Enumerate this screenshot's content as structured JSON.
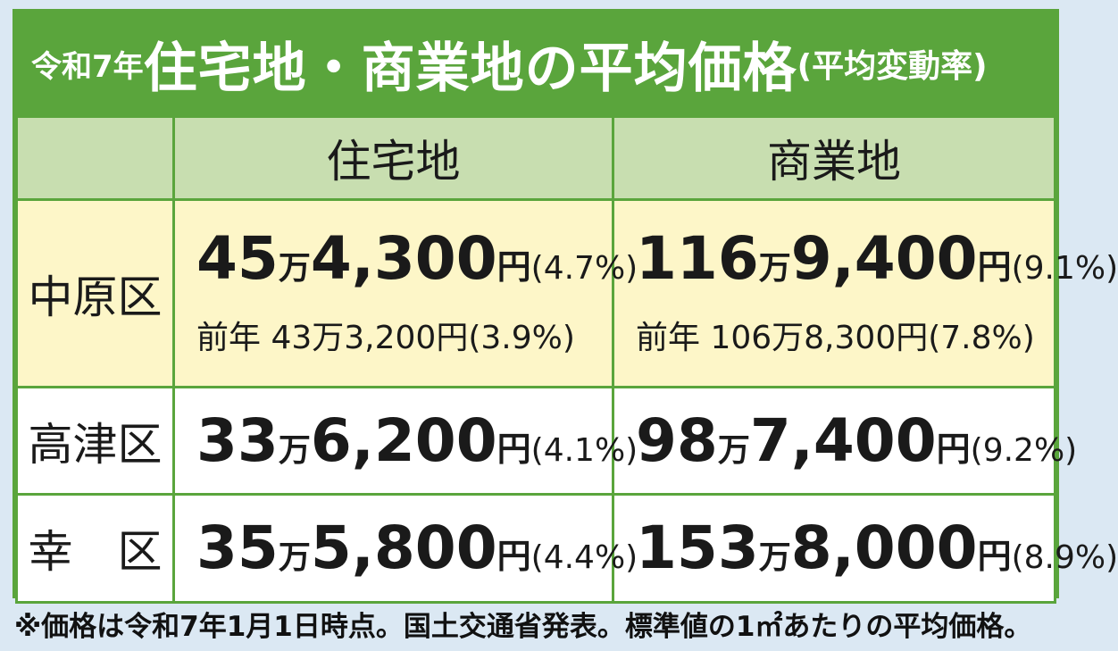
{
  "title": {
    "prefix": "令和7年",
    "main": "住宅地・商業地の平均価格",
    "suffix": "(平均変動率)"
  },
  "headers": {
    "blank": "",
    "residential": "住宅地",
    "commercial": "商業地"
  },
  "rows": [
    {
      "ward": "中原区",
      "residential": {
        "man": "45",
        "man_unit": "万",
        "rest": "4,300",
        "yen": "円",
        "rate": "(4.7%)",
        "prev": "前年 43万3,200円(3.9%)"
      },
      "commercial": {
        "man": "116",
        "man_unit": "万",
        "rest": "9,400",
        "yen": "円",
        "rate": "(9.1%)",
        "prev": "前年 106万8,300円(7.8%)"
      }
    },
    {
      "ward": "高津区",
      "residential": {
        "man": "33",
        "man_unit": "万",
        "rest": "6,200",
        "yen": "円",
        "rate": "(4.1%)"
      },
      "commercial": {
        "man": "98",
        "man_unit": "万",
        "rest": "7,400",
        "yen": "円",
        "rate": "(9.2%)"
      }
    },
    {
      "ward": "幸　区",
      "residential": {
        "man": "35",
        "man_unit": "万",
        "rest": "5,800",
        "yen": "円",
        "rate": "(4.4%)"
      },
      "commercial": {
        "man": "153",
        "man_unit": "万",
        "rest": "8,000",
        "yen": "円",
        "rate": "(8.9%)"
      }
    }
  ],
  "footnote": "※価格は令和7年1月1日時点。国土交通省発表。標準値の1㎡あたりの平均価格。",
  "colors": {
    "accent_green": "#5aa53c",
    "header_bg": "#c8deb0",
    "highlight_row_bg": "#fdf6c8",
    "page_bg": "#dbe8f3"
  }
}
